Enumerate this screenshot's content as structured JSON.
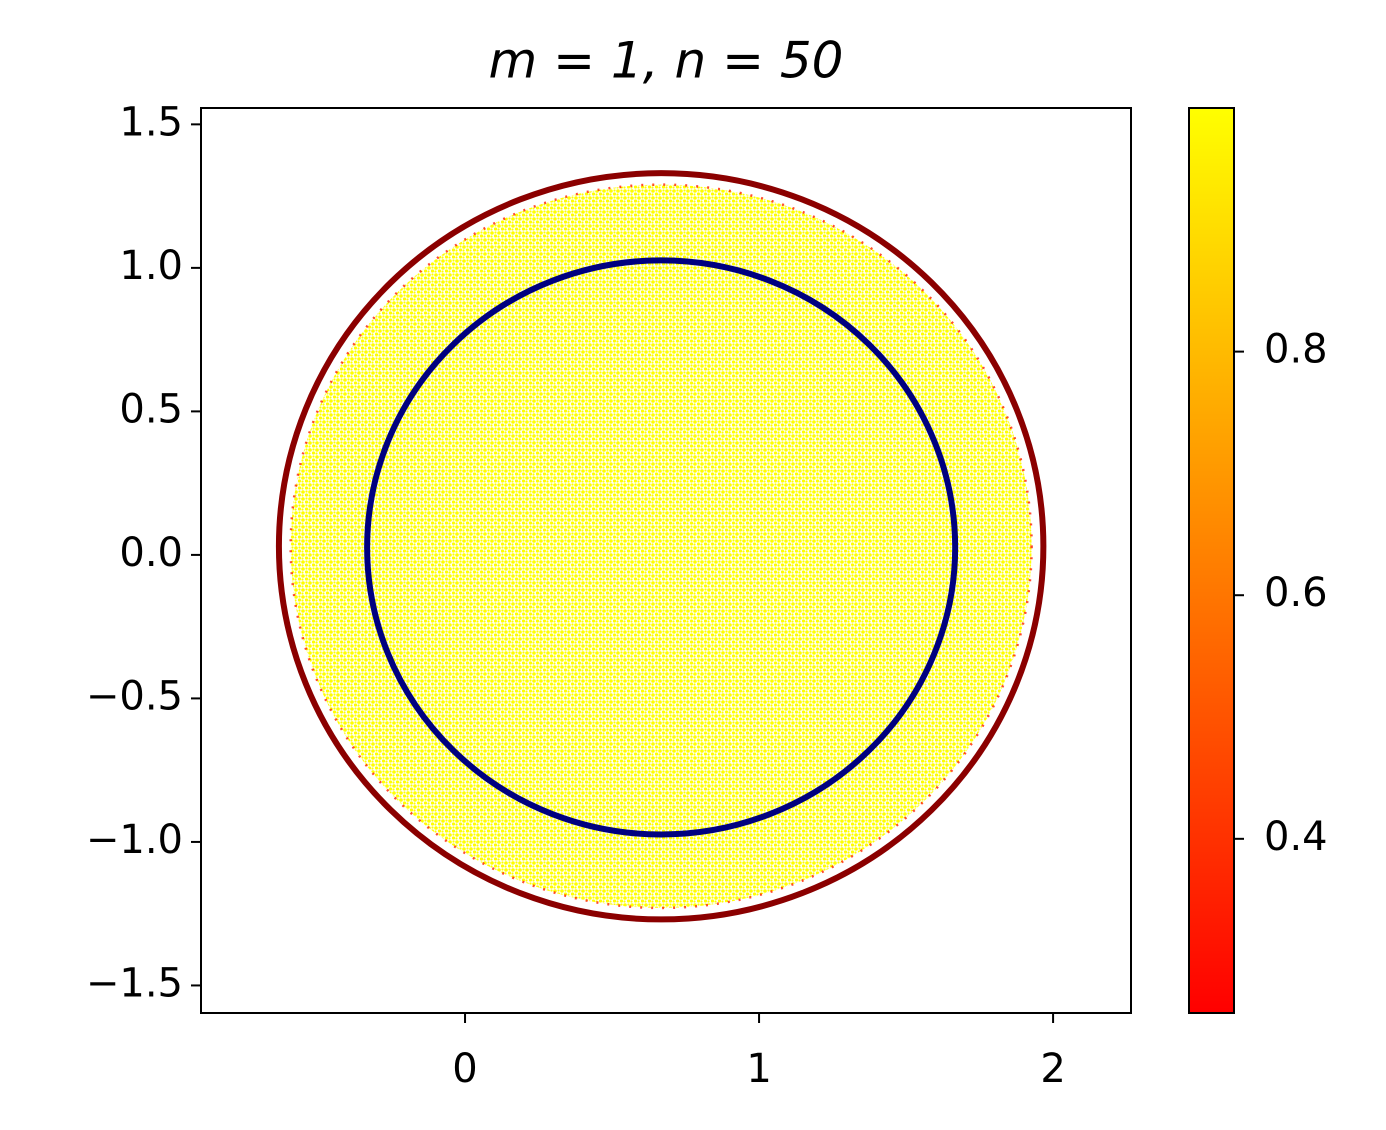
{
  "chart_data": {
    "type": "scatter",
    "title": "m = 1, n = 50",
    "xlim": [
      -0.898,
      2.265
    ],
    "ylim": [
      -1.596,
      1.557
    ],
    "xticks": [
      0,
      1,
      2
    ],
    "yticks": [
      {
        "value": -1.5,
        "label": "−1.5"
      },
      {
        "value": -1.0,
        "label": "−1.0"
      },
      {
        "value": -0.5,
        "label": "−0.5"
      },
      {
        "value": 0.0,
        "label": "0.0"
      },
      0.5,
      {
        "value": 1.0,
        "label": "1.0"
      },
      1.5
    ],
    "point_cloud": {
      "center": [
        0.667,
        0.03
      ],
      "radius": 1.26,
      "color": "#ffff00",
      "edge_color": "#ff2000"
    },
    "circles": [
      {
        "center": [
          0.667,
          0.03
        ],
        "radius": 1.3,
        "color": "#8b0000"
      },
      {
        "center": [
          0.667,
          0.026
        ],
        "radius": 1.0,
        "color": "#000080"
      }
    ],
    "colorbar": {
      "lim": [
        0.257,
        1.0
      ],
      "ticks": [
        0.4,
        0.6,
        0.8
      ],
      "colors": [
        "#ff0000",
        "#ffff00"
      ]
    }
  }
}
